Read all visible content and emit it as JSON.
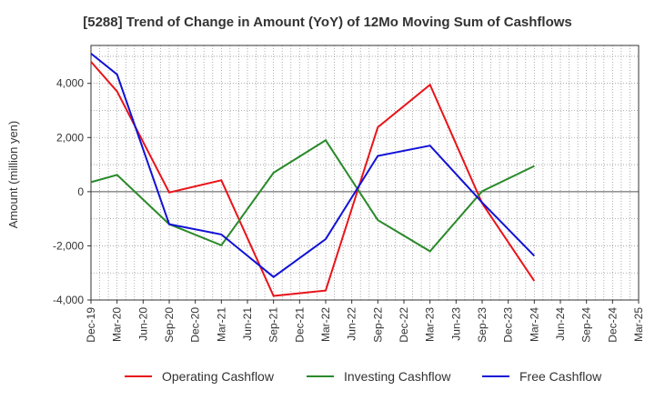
{
  "chart_data": {
    "type": "line",
    "title": "[5288]  Trend of Change in Amount (YoY) of 12Mo Moving Sum of Cashflows",
    "ylabel": "Amount (million yen)",
    "xlabel": "",
    "ylim": [
      -4000,
      5400
    ],
    "yticks": [
      -4000,
      -2000,
      0,
      2000,
      4000
    ],
    "ytick_labels": [
      "-4,000",
      "-2,000",
      "0",
      "2,000",
      "4,000"
    ],
    "grid": true,
    "legend_position": "bottom",
    "x_ticks": [
      "Dec-19",
      "Mar-20",
      "Jun-20",
      "Sep-20",
      "Dec-20",
      "Mar-21",
      "Jun-21",
      "Sep-21",
      "Dec-21",
      "Mar-22",
      "Jun-22",
      "Sep-22",
      "Dec-22",
      "Mar-23",
      "Jun-23",
      "Sep-23",
      "Dec-23",
      "Mar-24",
      "Jun-24",
      "Sep-24",
      "Dec-24",
      "Mar-25"
    ],
    "x": [
      "Dec-19",
      "Mar-20",
      "Sep-20",
      "Mar-21",
      "Sep-21",
      "Mar-22",
      "Sep-22",
      "Mar-23",
      "Sep-23",
      "Mar-24"
    ],
    "series": [
      {
        "name": "Operating Cashflow",
        "color": "#e8141a",
        "values": [
          4800,
          3700,
          -30,
          420,
          -3850,
          -3650,
          2380,
          3950,
          -430,
          -3300
        ]
      },
      {
        "name": "Investing Cashflow",
        "color": "#2a8a2a",
        "values": [
          350,
          620,
          -1200,
          -1980,
          700,
          1900,
          -1050,
          -2200,
          20,
          950
        ]
      },
      {
        "name": "Free Cashflow",
        "color": "#1212d6",
        "values": [
          5100,
          4330,
          -1200,
          -1580,
          -3150,
          -1750,
          1320,
          1700,
          -400,
          -2370
        ]
      }
    ]
  }
}
